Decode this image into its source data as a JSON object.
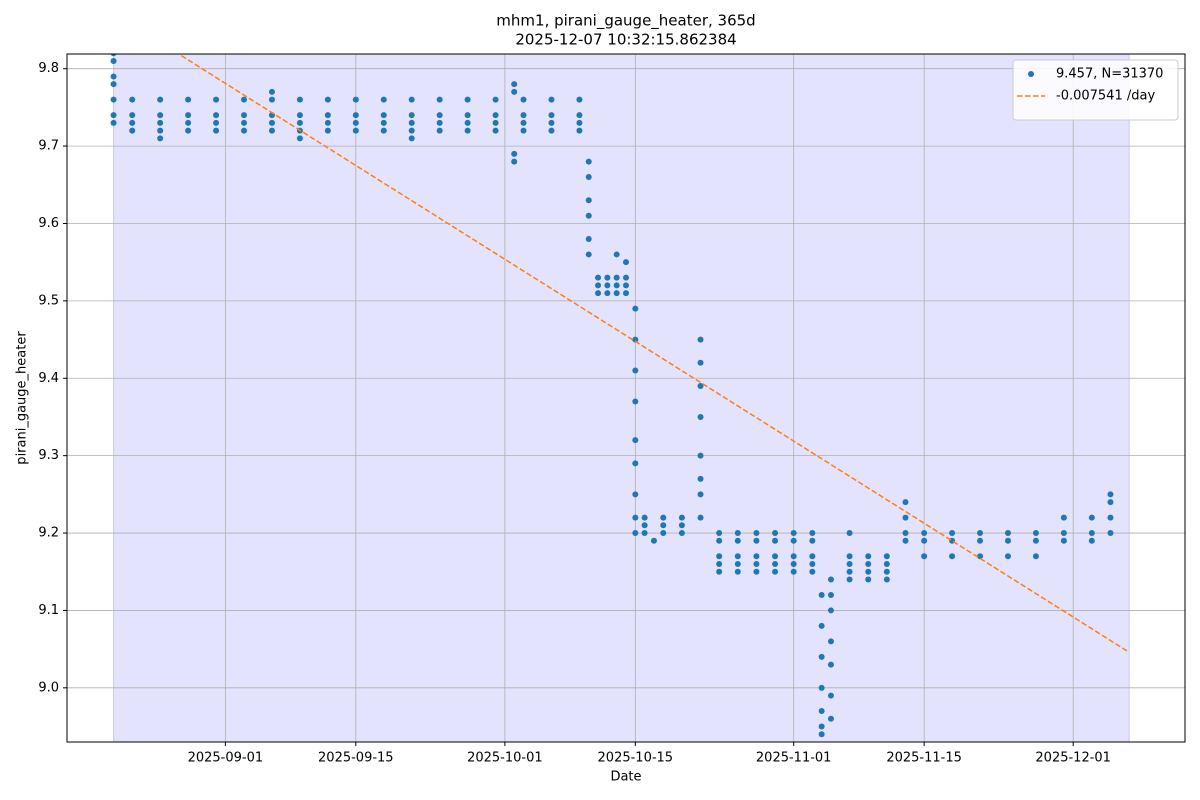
{
  "chart_data": {
    "type": "scatter",
    "title": "mhm1, pirani_gauge_heater, 365d",
    "subtitle": "2025-12-07 10:32:15.862384",
    "x_label": "Date",
    "y_label": "pirani_gauge_heater",
    "xlim": [
      "2025-08-15",
      "2025-12-13"
    ],
    "xticks": [
      "2025-09-01",
      "2025-09-15",
      "2025-10-01",
      "2025-10-15",
      "2025-11-01",
      "2025-11-15",
      "2025-12-01"
    ],
    "ylim": [
      8.93,
      9.819
    ],
    "yticks": [
      {
        "value": 9,
        "label": "9.0"
      },
      9.1,
      9.2,
      9.3,
      9.4,
      9.5,
      9.6,
      9.7,
      9.8
    ],
    "grid": true,
    "legend": "upper right",
    "shaded_span": {
      "x": [
        "2025-08-20",
        "2025-12-07"
      ],
      "color": "#e3e3fd"
    },
    "series": [
      {
        "name": "9.457, N=31370",
        "color": "#1f77b4",
        "x": [
          "2025-08-20",
          "2025-08-20",
          "2025-08-20",
          "2025-08-20",
          "2025-08-20",
          "2025-08-20",
          "2025-08-20",
          "2025-08-22",
          "2025-08-22",
          "2025-08-22",
          "2025-08-22",
          "2025-08-25",
          "2025-08-25",
          "2025-08-25",
          "2025-08-25",
          "2025-08-28",
          "2025-08-28",
          "2025-08-28",
          "2025-08-28",
          "2025-08-31",
          "2025-08-31",
          "2025-08-31",
          "2025-08-31",
          "2025-09-03",
          "2025-09-03",
          "2025-09-03",
          "2025-09-03",
          "2025-09-06",
          "2025-09-06",
          "2025-09-06",
          "2025-09-06",
          "2025-09-09",
          "2025-09-09",
          "2025-09-09",
          "2025-09-09",
          "2025-09-12",
          "2025-09-12",
          "2025-09-12",
          "2025-09-12",
          "2025-09-15",
          "2025-09-15",
          "2025-09-15",
          "2025-09-15",
          "2025-09-18",
          "2025-09-18",
          "2025-09-18",
          "2025-09-18",
          "2025-09-21",
          "2025-09-21",
          "2025-09-21",
          "2025-09-21",
          "2025-09-24",
          "2025-09-24",
          "2025-09-24",
          "2025-09-24",
          "2025-09-27",
          "2025-09-27",
          "2025-09-27",
          "2025-09-27",
          "2025-09-30",
          "2025-09-30",
          "2025-09-30",
          "2025-09-30",
          "2025-10-03",
          "2025-10-03",
          "2025-10-03",
          "2025-10-03",
          "2025-10-06",
          "2025-10-06",
          "2025-10-06",
          "2025-10-06",
          "2025-10-09",
          "2025-10-09",
          "2025-10-09",
          "2025-10-09",
          "2025-08-25",
          "2025-09-06",
          "2025-09-09",
          "2025-09-21",
          "2025-10-02",
          "2025-10-02",
          "2025-10-02",
          "2025-10-02",
          "2025-10-10",
          "2025-10-10",
          "2025-10-10",
          "2025-10-10",
          "2025-10-10",
          "2025-10-10",
          "2025-10-11",
          "2025-10-11",
          "2025-10-11",
          "2025-10-12",
          "2025-10-12",
          "2025-10-12",
          "2025-10-13",
          "2025-10-13",
          "2025-10-13",
          "2025-10-14",
          "2025-10-14",
          "2025-10-14",
          "2025-10-13",
          "2025-10-14",
          "2025-10-15",
          "2025-10-15",
          "2025-10-15",
          "2025-10-15",
          "2025-10-15",
          "2025-10-15",
          "2025-10-15",
          "2025-10-15",
          "2025-10-15",
          "2025-10-16",
          "2025-10-16",
          "2025-10-16",
          "2025-10-18",
          "2025-10-18",
          "2025-10-18",
          "2025-10-20",
          "2025-10-20",
          "2025-10-20",
          "2025-10-17",
          "2025-10-22",
          "2025-10-22",
          "2025-10-22",
          "2025-10-22",
          "2025-10-22",
          "2025-10-22",
          "2025-10-22",
          "2025-10-22",
          "2025-10-24",
          "2025-10-24",
          "2025-10-24",
          "2025-10-24",
          "2025-10-24",
          "2025-10-26",
          "2025-10-26",
          "2025-10-26",
          "2025-10-26",
          "2025-10-26",
          "2025-10-28",
          "2025-10-28",
          "2025-10-28",
          "2025-10-28",
          "2025-10-28",
          "2025-10-30",
          "2025-10-30",
          "2025-10-30",
          "2025-10-30",
          "2025-10-30",
          "2025-11-01",
          "2025-11-01",
          "2025-11-01",
          "2025-11-01",
          "2025-11-01",
          "2025-11-03",
          "2025-11-03",
          "2025-11-03",
          "2025-11-03",
          "2025-11-03",
          "2025-11-04",
          "2025-11-04",
          "2025-11-04",
          "2025-11-04",
          "2025-11-04",
          "2025-11-04",
          "2025-11-04",
          "2025-11-05",
          "2025-11-05",
          "2025-11-05",
          "2025-11-05",
          "2025-11-05",
          "2025-11-05",
          "2025-11-05",
          "2025-11-07",
          "2025-11-07",
          "2025-11-07",
          "2025-11-07",
          "2025-11-09",
          "2025-11-09",
          "2025-11-09",
          "2025-11-09",
          "2025-11-11",
          "2025-11-11",
          "2025-11-11",
          "2025-11-11",
          "2025-11-07",
          "2025-11-13",
          "2025-11-13",
          "2025-11-13",
          "2025-11-13",
          "2025-11-15",
          "2025-11-15",
          "2025-11-15",
          "2025-11-18",
          "2025-11-18",
          "2025-11-18",
          "2025-11-21",
          "2025-11-21",
          "2025-11-21",
          "2025-11-24",
          "2025-11-24",
          "2025-11-24",
          "2025-11-27",
          "2025-11-27",
          "2025-11-27",
          "2025-11-30",
          "2025-11-30",
          "2025-11-30",
          "2025-12-03",
          "2025-12-03",
          "2025-12-03",
          "2025-12-05",
          "2025-12-05",
          "2025-12-05",
          "2025-12-05"
        ],
        "values": [
          9.82,
          9.81,
          9.79,
          9.78,
          9.76,
          9.74,
          9.73,
          9.76,
          9.74,
          9.73,
          9.72,
          9.76,
          9.74,
          9.73,
          9.72,
          9.76,
          9.74,
          9.73,
          9.72,
          9.76,
          9.74,
          9.73,
          9.72,
          9.76,
          9.74,
          9.73,
          9.72,
          9.76,
          9.74,
          9.73,
          9.72,
          9.76,
          9.74,
          9.73,
          9.72,
          9.76,
          9.74,
          9.73,
          9.72,
          9.76,
          9.74,
          9.73,
          9.72,
          9.76,
          9.74,
          9.73,
          9.72,
          9.76,
          9.74,
          9.73,
          9.72,
          9.76,
          9.74,
          9.73,
          9.72,
          9.76,
          9.74,
          9.73,
          9.72,
          9.76,
          9.74,
          9.73,
          9.72,
          9.76,
          9.74,
          9.73,
          9.72,
          9.76,
          9.74,
          9.73,
          9.72,
          9.76,
          9.74,
          9.73,
          9.72,
          9.71,
          9.77,
          9.71,
          9.71,
          9.78,
          9.77,
          9.69,
          9.68,
          9.68,
          9.66,
          9.63,
          9.61,
          9.58,
          9.56,
          9.53,
          9.52,
          9.51,
          9.53,
          9.52,
          9.51,
          9.53,
          9.52,
          9.51,
          9.53,
          9.52,
          9.51,
          9.56,
          9.55,
          9.49,
          9.45,
          9.41,
          9.37,
          9.32,
          9.29,
          9.25,
          9.22,
          9.2,
          9.22,
          9.21,
          9.2,
          9.22,
          9.21,
          9.2,
          9.22,
          9.21,
          9.2,
          9.19,
          9.45,
          9.42,
          9.39,
          9.35,
          9.3,
          9.27,
          9.25,
          9.22,
          9.2,
          9.19,
          9.17,
          9.16,
          9.15,
          9.2,
          9.19,
          9.17,
          9.16,
          9.15,
          9.2,
          9.19,
          9.17,
          9.16,
          9.15,
          9.2,
          9.19,
          9.17,
          9.16,
          9.15,
          9.2,
          9.19,
          9.17,
          9.16,
          9.15,
          9.2,
          9.19,
          9.17,
          9.16,
          9.15,
          9.12,
          9.08,
          9.04,
          9.0,
          8.97,
          8.95,
          8.94,
          8.96,
          8.99,
          9.03,
          9.06,
          9.1,
          9.12,
          9.14,
          9.17,
          9.16,
          9.15,
          9.14,
          9.17,
          9.16,
          9.15,
          9.14,
          9.17,
          9.16,
          9.15,
          9.14,
          9.2,
          9.24,
          9.22,
          9.2,
          9.19,
          9.2,
          9.19,
          9.17,
          9.2,
          9.19,
          9.17,
          9.2,
          9.19,
          9.17,
          9.2,
          9.19,
          9.17,
          9.2,
          9.19,
          9.17,
          9.22,
          9.2,
          9.19,
          9.22,
          9.2,
          9.19,
          9.25,
          9.24,
          9.22,
          9.2
        ]
      },
      {
        "name": "-0.007541 /day",
        "type": "line",
        "color": "#ff7f0e",
        "dashed": true,
        "x": [
          "2025-08-20",
          "2025-12-07"
        ],
        "values": [
          9.872,
          9.046
        ]
      }
    ]
  }
}
